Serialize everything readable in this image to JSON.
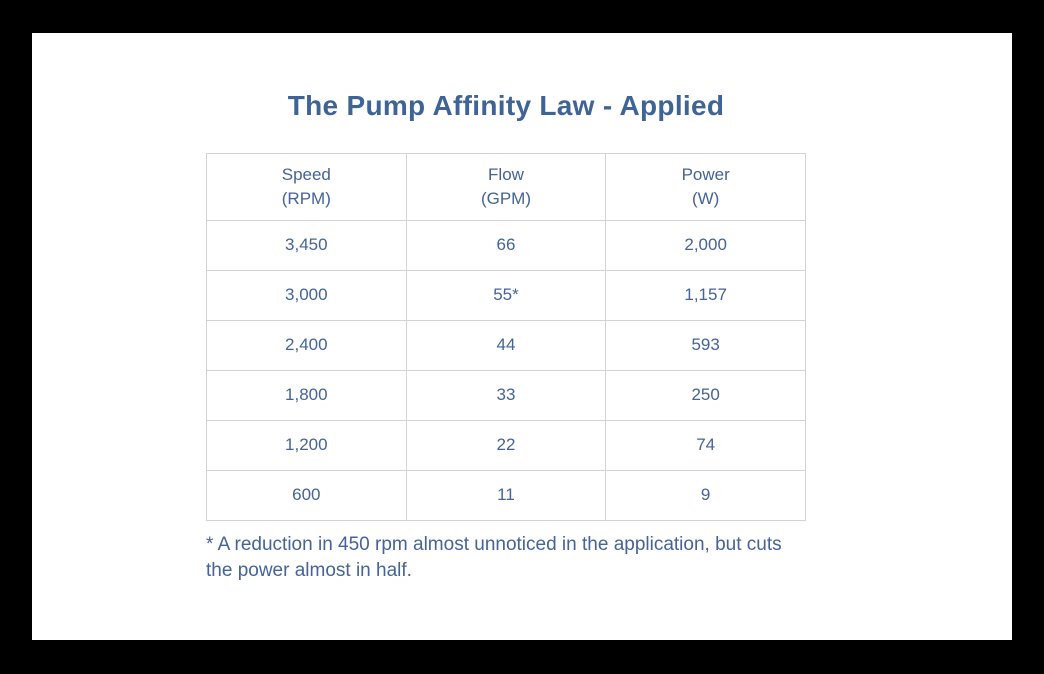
{
  "page": {
    "background_color": "#000000",
    "card_color": "#ffffff",
    "text_color": "#44639a",
    "title_color": "#3e6396",
    "border_color": "#d3d3d3"
  },
  "chart_data": {
    "type": "table",
    "title": "The Pump Affinity Law - Applied",
    "columns": [
      {
        "label": "Speed",
        "unit": "(RPM)"
      },
      {
        "label": "Flow",
        "unit": "(GPM)"
      },
      {
        "label": "Power",
        "unit": "(W)"
      }
    ],
    "rows": [
      [
        "3,450",
        "66",
        "2,000"
      ],
      [
        "3,000",
        "55*",
        "1,157"
      ],
      [
        "2,400",
        "44",
        "593"
      ],
      [
        "1,800",
        "33",
        "250"
      ],
      [
        "1,200",
        "22",
        "74"
      ],
      [
        "600",
        "11",
        "9"
      ]
    ],
    "footnote": "* A reduction in 450 rpm almost unnoticed in the application, but cuts the power almost in half."
  }
}
